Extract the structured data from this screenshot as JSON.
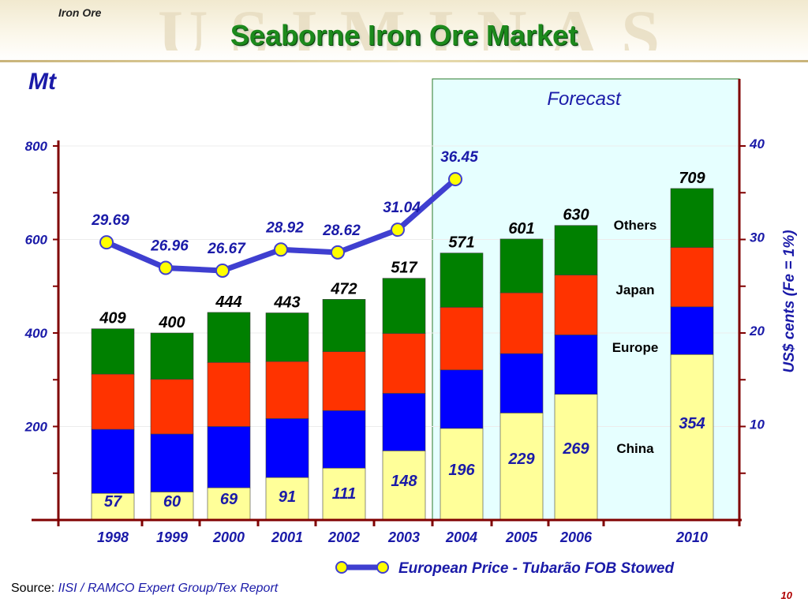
{
  "header": {
    "section": "Iron Ore",
    "title": "Seaborne Iron Ore Market",
    "banner_text": "USIMINAS"
  },
  "footer": {
    "source_label": "Source:",
    "source_value": "IISI / RAMCO Expert Group/Tex Report",
    "page_number": "10"
  },
  "colors": {
    "china": "#ffff99",
    "europe": "#0000ff",
    "japan": "#ff3300",
    "others": "#008000",
    "price_line": "#3f3fd0",
    "price_marker": "#ffff00",
    "forecast_bg": "#e6ffff",
    "axis": "#800000",
    "title": "#1c8a1c",
    "label_blue": "#1a1aa8"
  },
  "chart_data": {
    "type": "bar",
    "stacked": true,
    "categories": [
      "1998",
      "1999",
      "2000",
      "2001",
      "2002",
      "2003",
      "2004",
      "2005",
      "2006",
      "2010"
    ],
    "left_axis": {
      "label": "Mt",
      "ticks": [
        "200",
        "400",
        "600",
        "800"
      ],
      "ylim": [
        0,
        800
      ]
    },
    "right_axis": {
      "label": "US$ cents (Fe = 1%)",
      "ticks": [
        "10",
        "20",
        "30",
        "40"
      ],
      "ylim": [
        0,
        40
      ]
    },
    "forecast_label": "Forecast",
    "series": [
      {
        "name": "China",
        "values": [
          57,
          60,
          69,
          91,
          111,
          148,
          196,
          229,
          269,
          354
        ]
      },
      {
        "name": "Europe",
        "values": [
          137,
          124,
          131,
          126,
          123,
          123,
          125,
          127,
          127,
          102
        ]
      },
      {
        "name": "Japan",
        "values": [
          118,
          117,
          137,
          122,
          126,
          128,
          134,
          130,
          128,
          127
        ]
      },
      {
        "name": "Others",
        "values": [
          97,
          99,
          107,
          104,
          112,
          118,
          116,
          115,
          106,
          126
        ]
      }
    ],
    "totals": [
      409,
      400,
      444,
      443,
      472,
      517,
      571,
      601,
      630,
      709
    ],
    "china_labels": [
      "57",
      "60",
      "69",
      "91",
      "111",
      "148",
      "196",
      "229",
      "269",
      "354"
    ],
    "total_labels": [
      "409",
      "400",
      "444",
      "443",
      "472",
      "517",
      "571",
      "601",
      "630",
      "709"
    ],
    "legend_labels": [
      "Others",
      "Japan",
      "Europe",
      "China"
    ],
    "price_series": {
      "name": "European Price - Tubarão FOB Stowed",
      "categories": [
        "1998",
        "1999",
        "2000",
        "2001",
        "2002",
        "2003",
        "2004"
      ],
      "values": [
        29.69,
        26.96,
        26.67,
        28.92,
        28.62,
        31.04,
        36.45
      ],
      "labels": [
        "29.69",
        "26.96",
        "26.67",
        "28.92",
        "28.62",
        "31.04",
        "36.45"
      ]
    }
  }
}
